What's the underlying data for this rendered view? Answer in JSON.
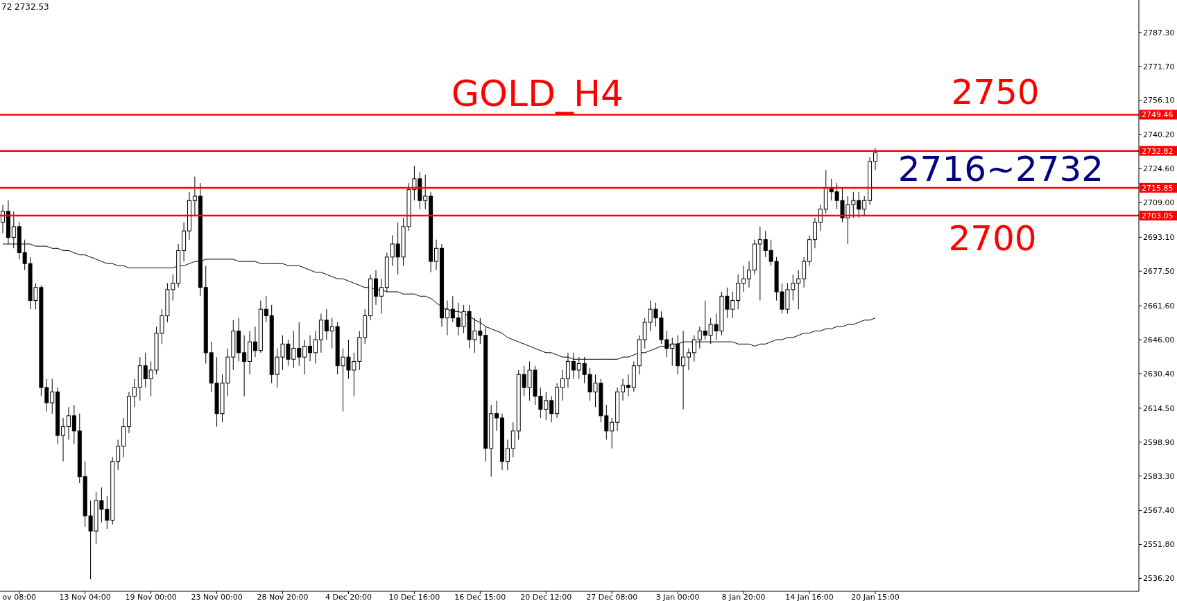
{
  "chart_data": {
    "type": "candlestick",
    "title": "GOLD_H4",
    "annotations": [
      "72 2732.53",
      "2750",
      "2716~2732",
      "2700"
    ],
    "categories": [
      null,
      null,
      null,
      "ov 08:00",
      null,
      null,
      null,
      null,
      null,
      null,
      null,
      null,
      null,
      null,
      null,
      "13 Nov 04:00",
      null,
      null,
      null,
      null,
      null,
      null,
      null,
      null,
      null,
      null,
      null,
      "19 Nov 00:00",
      null,
      null,
      null,
      null,
      null,
      null,
      null,
      null,
      null,
      null,
      null,
      "23 Nov 00:00",
      null,
      null,
      null,
      null,
      null,
      null,
      null,
      null,
      null,
      null,
      null,
      "28 Nov 20:00",
      null,
      null,
      null,
      null,
      null,
      null,
      null,
      null,
      null,
      null,
      null,
      "4 Dec 20:00",
      null,
      null,
      null,
      null,
      null,
      null,
      null,
      null,
      null,
      null,
      null,
      "10 Dec 16:00",
      null,
      null,
      null,
      null,
      null,
      null,
      null,
      null,
      null,
      null,
      null,
      "16 Dec 15:00",
      null,
      null,
      null,
      null,
      null,
      null,
      null,
      null,
      null,
      null,
      null,
      "20 Dec 12:00",
      null,
      null,
      null,
      null,
      null,
      null,
      null,
      null,
      null,
      null,
      null,
      "27 Dec 08:00",
      null,
      null,
      null,
      null,
      null,
      null,
      null,
      null,
      null,
      null,
      null,
      "3 Jan 00:00",
      null,
      null,
      null,
      null,
      null,
      null,
      null,
      null,
      null,
      null,
      null,
      "8 Jan 20:00",
      null,
      null,
      null,
      null,
      null,
      null,
      null,
      null,
      null,
      null,
      null,
      "14 Jan 16:00",
      null,
      null,
      null,
      null,
      null,
      null,
      null,
      null,
      null,
      null,
      null,
      "20 Jan 15:00"
    ],
    "ohlc": [
      [
        2700,
        2708,
        2695,
        2705
      ],
      [
        2705,
        2710,
        2690,
        2693
      ],
      [
        2693,
        2705,
        2688,
        2698
      ],
      [
        2698,
        2700,
        2683,
        2686
      ],
      [
        2686,
        2692,
        2678,
        2681
      ],
      [
        2681,
        2684,
        2660,
        2664
      ],
      [
        2664,
        2672,
        2660,
        2670
      ],
      [
        2670,
        2671,
        2620,
        2624
      ],
      [
        2624,
        2628,
        2613,
        2617
      ],
      [
        2617,
        2628,
        2612,
        2622
      ],
      [
        2622,
        2624,
        2598,
        2602
      ],
      [
        2602,
        2610,
        2590,
        2606
      ],
      [
        2606,
        2615,
        2600,
        2611
      ],
      [
        2611,
        2616,
        2598,
        2604
      ],
      [
        2604,
        2612,
        2580,
        2583
      ],
      [
        2583,
        2590,
        2560,
        2565
      ],
      [
        2565,
        2572,
        2536,
        2558
      ],
      [
        2558,
        2576,
        2552,
        2572
      ],
      [
        2572,
        2578,
        2562,
        2568
      ],
      [
        2568,
        2574,
        2559,
        2563
      ],
      [
        2563,
        2592,
        2561,
        2590
      ],
      [
        2590,
        2600,
        2586,
        2597
      ],
      [
        2597,
        2610,
        2592,
        2606
      ],
      [
        2606,
        2622,
        2603,
        2620
      ],
      [
        2620,
        2628,
        2615,
        2624
      ],
      [
        2624,
        2638,
        2618,
        2634
      ],
      [
        2634,
        2640,
        2624,
        2628
      ],
      [
        2628,
        2636,
        2620,
        2632
      ],
      [
        2632,
        2652,
        2630,
        2649
      ],
      [
        2649,
        2660,
        2644,
        2657
      ],
      [
        2657,
        2672,
        2654,
        2669
      ],
      [
        2669,
        2676,
        2664,
        2672
      ],
      [
        2672,
        2690,
        2670,
        2687
      ],
      [
        2687,
        2700,
        2682,
        2696
      ],
      [
        2696,
        2714,
        2692,
        2710
      ],
      [
        2710,
        2721,
        2703,
        2712
      ],
      [
        2712,
        2718,
        2666,
        2670
      ],
      [
        2670,
        2680,
        2635,
        2640
      ],
      [
        2640,
        2645,
        2622,
        2626
      ],
      [
        2626,
        2638,
        2606,
        2612
      ],
      [
        2612,
        2630,
        2608,
        2626
      ],
      [
        2626,
        2642,
        2620,
        2638
      ],
      [
        2638,
        2655,
        2632,
        2650
      ],
      [
        2650,
        2656,
        2636,
        2640
      ],
      [
        2640,
        2648,
        2620,
        2636
      ],
      [
        2636,
        2650,
        2630,
        2645
      ],
      [
        2645,
        2652,
        2638,
        2641
      ],
      [
        2641,
        2664,
        2640,
        2660
      ],
      [
        2660,
        2666,
        2654,
        2657
      ],
      [
        2657,
        2662,
        2626,
        2630
      ],
      [
        2630,
        2642,
        2624,
        2638
      ],
      [
        2638,
        2648,
        2632,
        2644
      ],
      [
        2644,
        2646,
        2634,
        2637
      ],
      [
        2637,
        2650,
        2633,
        2642
      ],
      [
        2642,
        2654,
        2634,
        2638
      ],
      [
        2638,
        2646,
        2630,
        2643
      ],
      [
        2643,
        2648,
        2636,
        2640
      ],
      [
        2640,
        2650,
        2635,
        2646
      ],
      [
        2646,
        2658,
        2640,
        2655
      ],
      [
        2655,
        2660,
        2646,
        2650
      ],
      [
        2650,
        2656,
        2642,
        2652
      ],
      [
        2652,
        2654,
        2630,
        2634
      ],
      [
        2634,
        2642,
        2613,
        2638
      ],
      [
        2638,
        2646,
        2628,
        2632
      ],
      [
        2632,
        2640,
        2620,
        2636
      ],
      [
        2636,
        2650,
        2632,
        2647
      ],
      [
        2647,
        2660,
        2644,
        2657
      ],
      [
        2657,
        2676,
        2655,
        2674
      ],
      [
        2674,
        2678,
        2662,
        2666
      ],
      [
        2666,
        2674,
        2658,
        2670
      ],
      [
        2670,
        2686,
        2668,
        2684
      ],
      [
        2684,
        2694,
        2680,
        2690
      ],
      [
        2690,
        2700,
        2676,
        2684
      ],
      [
        2684,
        2702,
        2680,
        2698
      ],
      [
        2698,
        2718,
        2696,
        2715
      ],
      [
        2715,
        2726,
        2710,
        2720
      ],
      [
        2720,
        2723,
        2706,
        2710
      ],
      [
        2710,
        2722,
        2706,
        2712
      ],
      [
        2712,
        2714,
        2677,
        2682
      ],
      [
        2682,
        2692,
        2678,
        2688
      ],
      [
        2688,
        2690,
        2652,
        2656
      ],
      [
        2656,
        2664,
        2648,
        2660
      ],
      [
        2660,
        2666,
        2654,
        2656
      ],
      [
        2656,
        2663,
        2648,
        2652
      ],
      [
        2652,
        2662,
        2649,
        2659
      ],
      [
        2659,
        2662,
        2642,
        2646
      ],
      [
        2646,
        2656,
        2640,
        2650
      ],
      [
        2650,
        2656,
        2644,
        2648
      ],
      [
        2648,
        2652,
        2590,
        2596
      ],
      [
        2596,
        2616,
        2583,
        2612
      ],
      [
        2612,
        2618,
        2604,
        2610
      ],
      [
        2610,
        2612,
        2586,
        2590
      ],
      [
        2590,
        2600,
        2586,
        2596
      ],
      [
        2596,
        2608,
        2592,
        2604
      ],
      [
        2604,
        2632,
        2600,
        2630
      ],
      [
        2630,
        2634,
        2620,
        2624
      ],
      [
        2624,
        2636,
        2618,
        2632
      ],
      [
        2632,
        2634,
        2616,
        2620
      ],
      [
        2620,
        2624,
        2610,
        2614
      ],
      [
        2614,
        2622,
        2609,
        2618
      ],
      [
        2618,
        2620,
        2608,
        2612
      ],
      [
        2612,
        2626,
        2610,
        2624
      ],
      [
        2624,
        2632,
        2618,
        2628
      ],
      [
        2628,
        2640,
        2624,
        2636
      ],
      [
        2636,
        2640,
        2628,
        2632
      ],
      [
        2632,
        2638,
        2628,
        2635
      ],
      [
        2635,
        2638,
        2626,
        2630
      ],
      [
        2630,
        2633,
        2618,
        2622
      ],
      [
        2622,
        2630,
        2615,
        2626
      ],
      [
        2626,
        2628,
        2608,
        2611
      ],
      [
        2611,
        2616,
        2600,
        2604
      ],
      [
        2604,
        2610,
        2596,
        2608
      ],
      [
        2608,
        2624,
        2604,
        2622
      ],
      [
        2622,
        2628,
        2618,
        2625
      ],
      [
        2625,
        2630,
        2620,
        2624
      ],
      [
        2624,
        2636,
        2622,
        2634
      ],
      [
        2634,
        2648,
        2630,
        2646
      ],
      [
        2646,
        2656,
        2642,
        2654
      ],
      [
        2654,
        2664,
        2650,
        2660
      ],
      [
        2660,
        2663,
        2652,
        2656
      ],
      [
        2656,
        2659,
        2644,
        2646
      ],
      [
        2646,
        2650,
        2638,
        2642
      ],
      [
        2642,
        2647,
        2634,
        2644
      ],
      [
        2644,
        2648,
        2630,
        2634
      ],
      [
        2634,
        2650,
        2614,
        2638
      ],
      [
        2638,
        2642,
        2632,
        2640
      ],
      [
        2640,
        2648,
        2636,
        2646
      ],
      [
        2646,
        2652,
        2642,
        2650
      ],
      [
        2650,
        2664,
        2646,
        2648
      ],
      [
        2648,
        2656,
        2644,
        2653
      ],
      [
        2653,
        2658,
        2646,
        2650
      ],
      [
        2650,
        2668,
        2648,
        2666
      ],
      [
        2666,
        2670,
        2656,
        2660
      ],
      [
        2660,
        2668,
        2656,
        2664
      ],
      [
        2664,
        2676,
        2660,
        2672
      ],
      [
        2672,
        2680,
        2668,
        2674
      ],
      [
        2674,
        2682,
        2670,
        2678
      ],
      [
        2678,
        2692,
        2676,
        2690
      ],
      [
        2690,
        2698,
        2664,
        2692
      ],
      [
        2692,
        2696,
        2684,
        2687
      ],
      [
        2687,
        2692,
        2680,
        2682
      ],
      [
        2682,
        2684,
        2664,
        2668
      ],
      [
        2668,
        2672,
        2658,
        2660
      ],
      [
        2660,
        2672,
        2658,
        2669
      ],
      [
        2669,
        2676,
        2664,
        2672
      ],
      [
        2672,
        2678,
        2660,
        2674
      ],
      [
        2674,
        2684,
        2670,
        2682
      ],
      [
        2682,
        2694,
        2680,
        2692
      ],
      [
        2692,
        2702,
        2688,
        2700
      ],
      [
        2700,
        2708,
        2696,
        2706
      ],
      [
        2706,
        2724,
        2704,
        2716
      ],
      [
        2716,
        2720,
        2710,
        2714
      ],
      [
        2714,
        2718,
        2706,
        2710
      ],
      [
        2710,
        2716,
        2700,
        2702
      ],
      [
        2702,
        2712,
        2690,
        2708
      ],
      [
        2708,
        2714,
        2702,
        2710
      ],
      [
        2710,
        2714,
        2702,
        2706
      ],
      [
        2706,
        2712,
        2703,
        2710
      ],
      [
        2710,
        2730,
        2708,
        2728
      ],
      [
        2728,
        2734,
        2724,
        2732
      ]
    ],
    "series": [
      {
        "type": "line",
        "color": "#000000",
        "values": [
          2690,
          2690,
          2690,
          2690,
          2690,
          2690,
          2689,
          2689,
          2689,
          2688,
          2688,
          2687,
          2687,
          2686,
          2685,
          2685,
          2684,
          2683,
          2682,
          2681,
          2681,
          2680,
          2680,
          2679,
          2679,
          2679,
          2679,
          2679,
          2679,
          2679,
          2679,
          2679,
          2680,
          2680,
          2681,
          2682,
          2682,
          2683,
          2683,
          2683,
          2683,
          2683,
          2683,
          2682,
          2682,
          2682,
          2682,
          2681,
          2681,
          2681,
          2681,
          2681,
          2680,
          2680,
          2680,
          2679,
          2678,
          2677,
          2677,
          2676,
          2675,
          2674,
          2674,
          2673,
          2672,
          2671,
          2670,
          2670,
          2669,
          2669,
          2668,
          2668,
          2668,
          2667,
          2667,
          2667,
          2666,
          2666,
          2665,
          2663,
          2661,
          2660,
          2659,
          2659,
          2658,
          2657,
          2655,
          2654,
          2652,
          2651,
          2650,
          2649,
          2647,
          2646,
          2645,
          2644,
          2643,
          2642,
          2641,
          2640,
          2640,
          2639,
          2638,
          2638,
          2637,
          2637,
          2637,
          2637,
          2637,
          2637,
          2637,
          2637,
          2637,
          2638,
          2638,
          2639,
          2640,
          2640,
          2641,
          2642,
          2643,
          2643,
          2644,
          2644,
          2645,
          2645,
          2645,
          2645,
          2645,
          2645,
          2645,
          2645,
          2645,
          2645,
          2644,
          2644,
          2644,
          2643,
          2644,
          2644,
          2645,
          2646,
          2646,
          2647,
          2647,
          2648,
          2649,
          2649,
          2650,
          2650,
          2651,
          2651,
          2652,
          2652,
          2653,
          2653,
          2654,
          2655,
          2655,
          2656
        ]
      }
    ],
    "ylim": [
      2530.3,
      2802.2
    ],
    "yticks": [
      {
        "value": 2536.2,
        "label": "2536.20"
      },
      {
        "value": 2551.8,
        "label": "2551.80"
      },
      {
        "value": 2567.4,
        "label": "2567.40"
      },
      {
        "value": 2583.3,
        "label": "2583.30"
      },
      {
        "value": 2598.9,
        "label": "2598.90"
      },
      {
        "value": 2614.5,
        "label": "2614.50"
      },
      {
        "value": 2630.4,
        "label": "2630.40"
      },
      {
        "value": 2646,
        "label": "2646.00"
      },
      {
        "value": 2661.6,
        "label": "2661.60"
      },
      {
        "value": 2677.5,
        "label": "2677.50"
      },
      {
        "value": 2693.1,
        "label": "2693.10"
      },
      {
        "value": 2709,
        "label": "2709.00"
      },
      {
        "value": 2724.6,
        "label": "2724.60"
      },
      {
        "value": 2740.2,
        "label": "2740.20"
      },
      {
        "value": 2756.1,
        "label": "2756.10"
      },
      {
        "value": 2771.7,
        "label": "2771.70"
      },
      {
        "value": 2787.3,
        "label": "2787.30"
      }
    ],
    "ref_lines": [
      {
        "axis": "y",
        "value": 2749.46,
        "label": "2749.46",
        "color": "#ff0000"
      },
      {
        "axis": "y",
        "value": 2732.82,
        "label": "2732.82",
        "color": "#ff0000"
      },
      {
        "axis": "y",
        "value": 2715.85,
        "label": "2715.85",
        "color": "#ff0000"
      },
      {
        "axis": "y",
        "value": 2703.05,
        "label": "2703.05",
        "color": "#ff0000"
      }
    ]
  }
}
